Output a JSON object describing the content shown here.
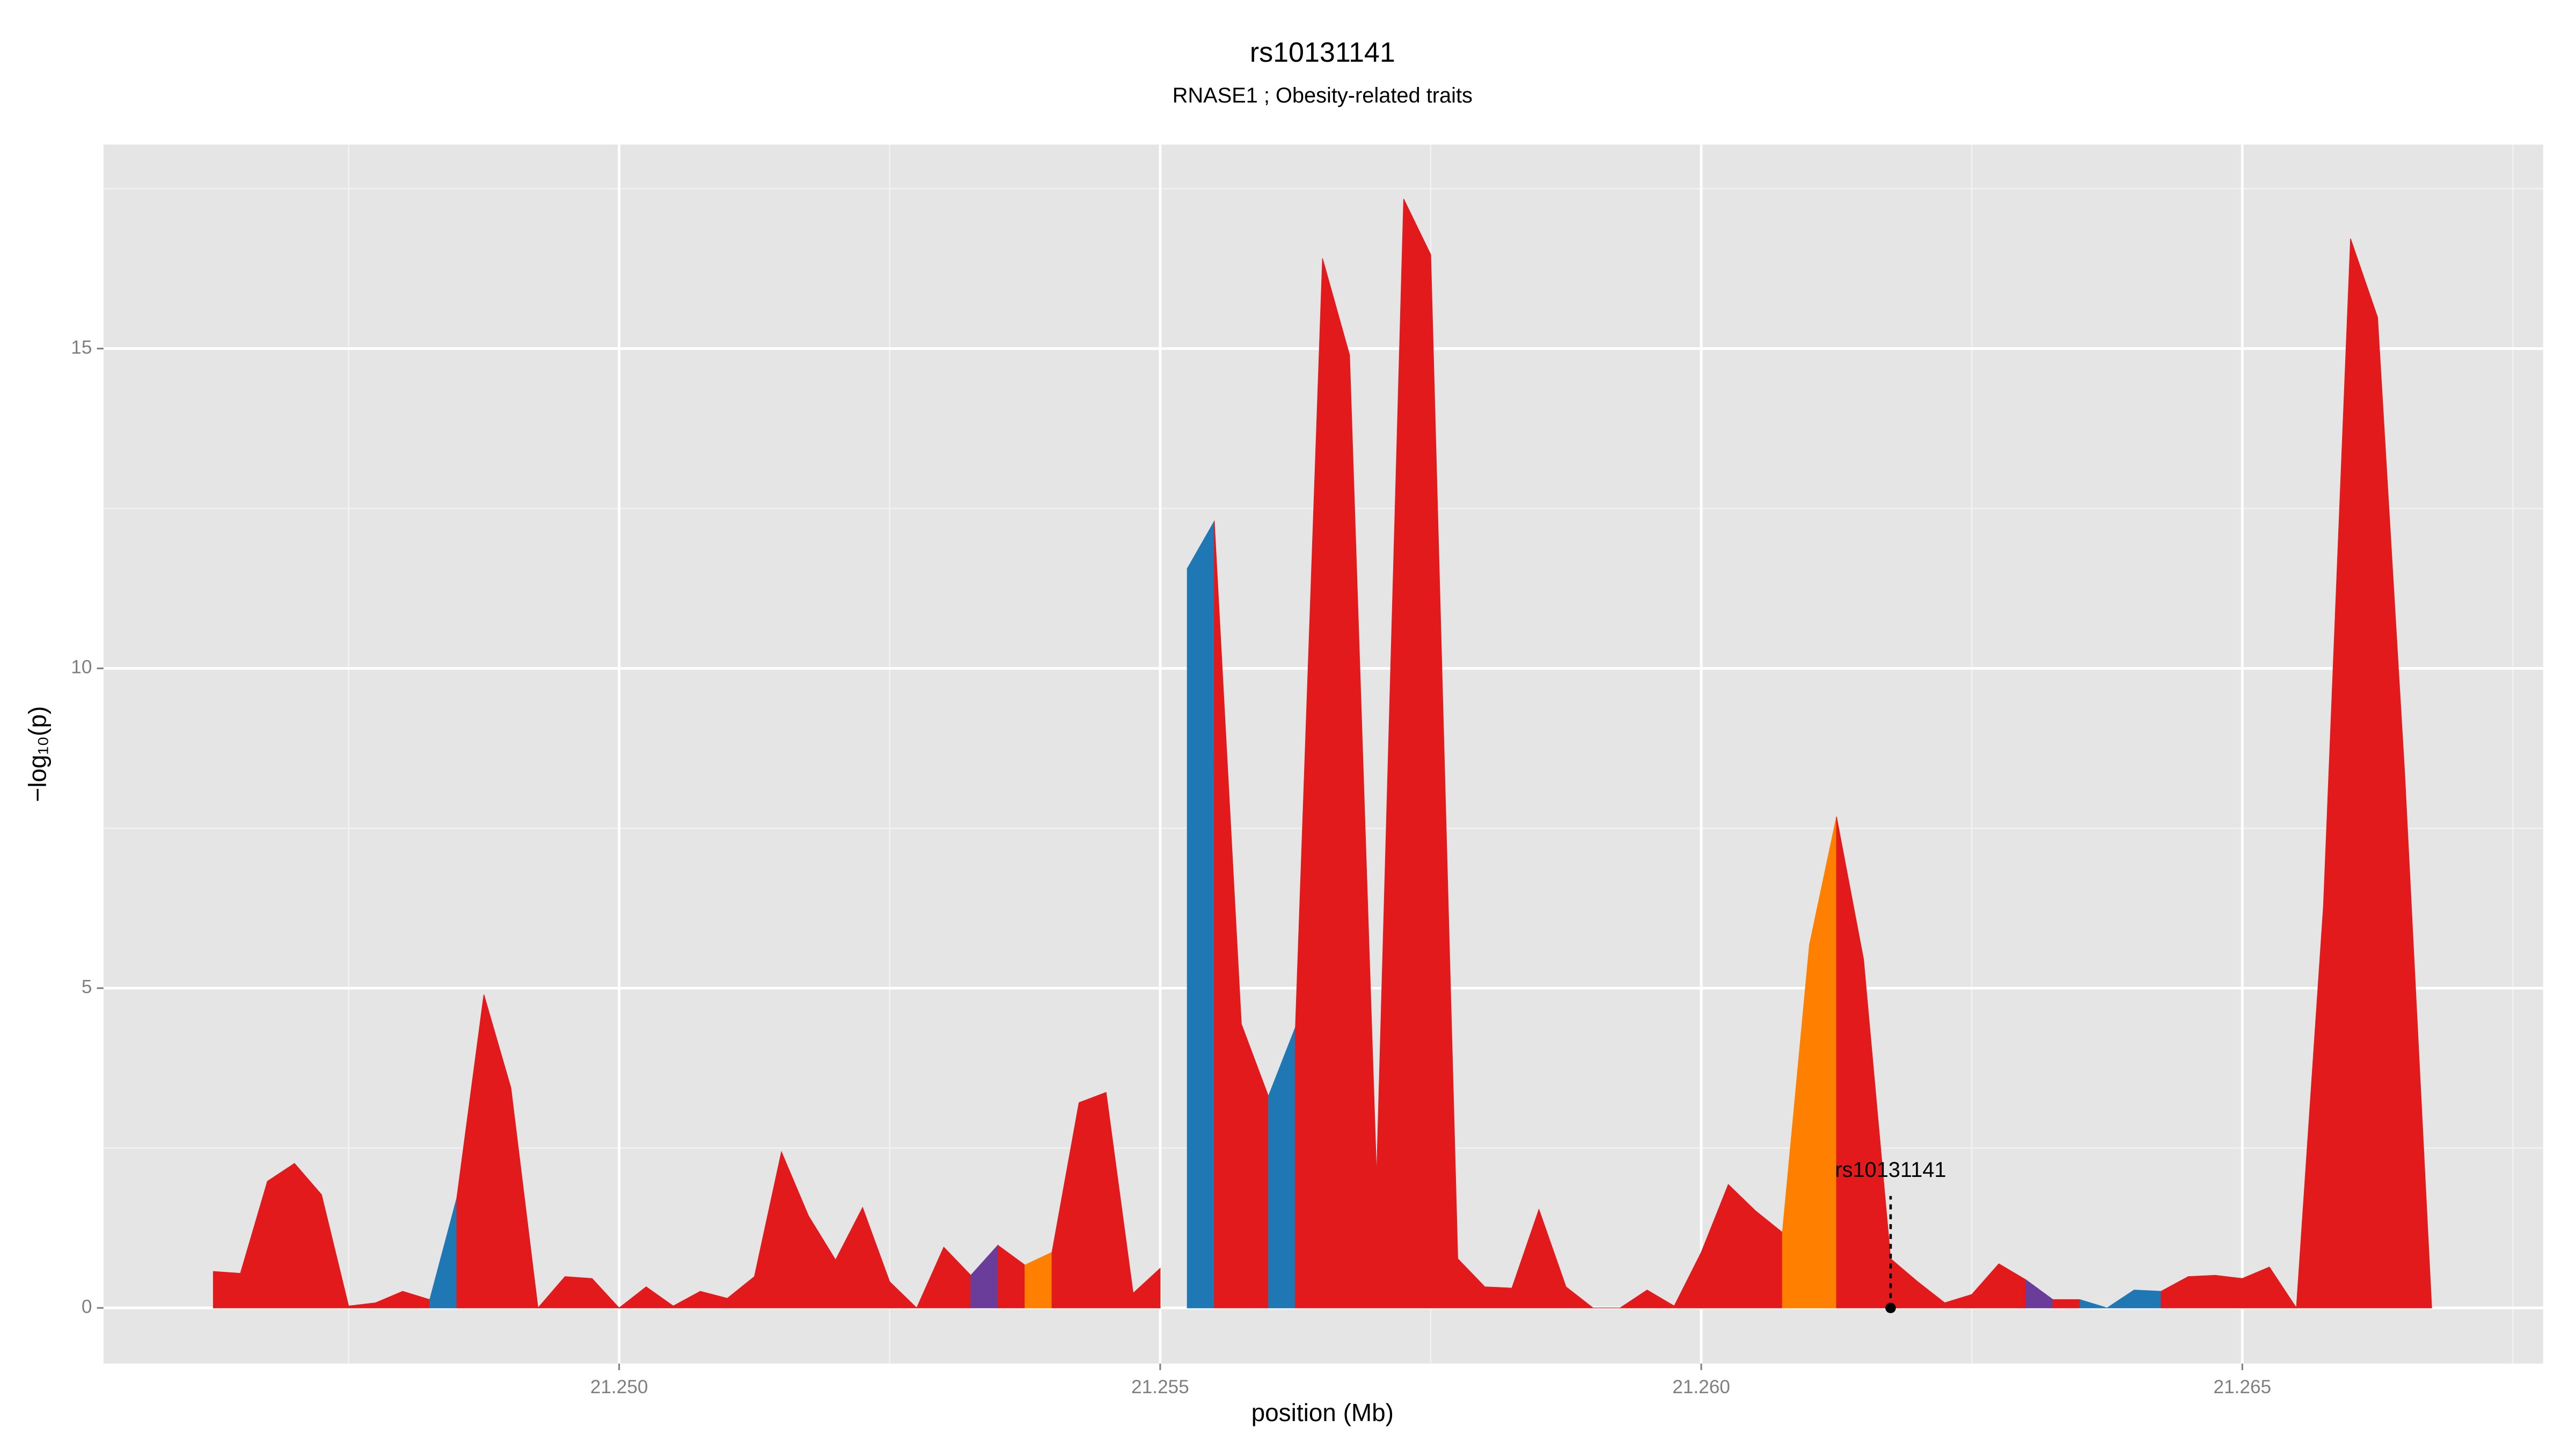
{
  "chart_data": {
    "type": "area",
    "title": "rs10131141",
    "subtitle": "RNASE1 ; Obesity-related traits",
    "xlabel": "position (Mb)",
    "ylabel": "−log₁₀(p)",
    "xlim": [
      21.245235,
      21.26778
    ],
    "ylim": [
      -0.87,
      18.19
    ],
    "xticks": [
      {
        "value": 21.25,
        "label": "21.250"
      },
      {
        "value": 21.255,
        "label": "21.255"
      },
      {
        "value": 21.26,
        "label": "21.260"
      },
      {
        "value": 21.265,
        "label": "21.265"
      }
    ],
    "yticks": [
      0,
      5,
      10,
      15
    ],
    "xminor": [
      21.2475,
      21.2525,
      21.2575,
      21.2625,
      21.2675
    ],
    "yminor": [
      2.5,
      7.5,
      12.5,
      17.5
    ],
    "grid": true,
    "series": [
      {
        "color": "#e31a1c",
        "x": [
          21.24625,
          21.2465,
          21.24675,
          21.247,
          21.24725,
          21.2475,
          21.24775,
          21.248,
          21.24825
        ],
        "values": [
          0.57,
          0.54,
          1.98,
          2.26,
          1.77,
          0.03,
          0.08,
          0.26,
          0.13
        ]
      },
      {
        "color": "#1f78b4",
        "x": [
          21.24825,
          21.2485
        ],
        "values": [
          0.13,
          1.72
        ]
      },
      {
        "color": "#e31a1c",
        "x": [
          21.2485,
          21.24875,
          21.249,
          21.24925,
          21.2495,
          21.24975,
          21.25,
          21.25025,
          21.2505,
          21.25075,
          21.251,
          21.25125,
          21.2515,
          21.25175,
          21.252,
          21.25225,
          21.2525,
          21.25275,
          21.253,
          21.25325
        ],
        "values": [
          1.72,
          4.9,
          3.44,
          0,
          0.49,
          0.46,
          0,
          0.33,
          0.03,
          0.26,
          0.15,
          0.49,
          2.44,
          1.44,
          0.75,
          1.57,
          0.41,
          0,
          0.95,
          0.51
        ]
      },
      {
        "color": "#6a3d9a",
        "x": [
          21.25325,
          21.2535
        ],
        "values": [
          0.51,
          0.98
        ]
      },
      {
        "color": "#e31a1c",
        "x": [
          21.2535,
          21.25375
        ],
        "values": [
          0.98,
          0.67
        ]
      },
      {
        "color": "#ff7f00",
        "x": [
          21.25375,
          21.254
        ],
        "values": [
          0.67,
          0.87
        ]
      },
      {
        "color": "#e31a1c",
        "x": [
          21.254,
          21.25425,
          21.2545,
          21.25475,
          21.255
        ],
        "values": [
          0.87,
          3.21,
          3.37,
          0.23,
          0.62
        ]
      },
      {
        "color": "#1f78b4",
        "x": [
          21.25525,
          21.2555
        ],
        "values": [
          11.56,
          12.3
        ]
      },
      {
        "color": "#e31a1c",
        "x": [
          21.2555,
          21.25575,
          21.256
        ],
        "values": [
          12.3,
          4.44,
          3.31
        ]
      },
      {
        "color": "#1f78b4",
        "x": [
          21.256,
          21.25625
        ],
        "values": [
          3.31,
          4.39
        ]
      },
      {
        "color": "#e31a1c",
        "x": [
          21.25625,
          21.2565,
          21.25675,
          21.257,
          21.25725,
          21.2575,
          21.25775,
          21.258,
          21.25825,
          21.2585,
          21.25875,
          21.259,
          21.25925,
          21.2595,
          21.25975,
          21.26,
          21.26025,
          21.2605,
          21.26075
        ],
        "values": [
          4.39,
          16.41,
          14.9,
          2.05,
          17.34,
          16.47,
          0.77,
          0.33,
          0.31,
          1.54,
          0.33,
          0,
          0,
          0.28,
          0.03,
          0.87,
          1.93,
          1.52,
          1.18
        ]
      },
      {
        "color": "#ff7f00",
        "x": [
          21.26075,
          21.261,
          21.26125
        ],
        "values": [
          1.18,
          5.68,
          7.68
        ]
      },
      {
        "color": "#e31a1c",
        "x": [
          21.26125,
          21.2615,
          21.26175,
          21.262,
          21.26225,
          21.2625,
          21.26275,
          21.263
        ],
        "values": [
          7.68,
          5.45,
          0.77,
          0.41,
          0.08,
          0.21,
          0.69,
          0.44
        ]
      },
      {
        "color": "#6a3d9a",
        "x": [
          21.263,
          21.26325
        ],
        "values": [
          0.44,
          0.13
        ]
      },
      {
        "color": "#e31a1c",
        "x": [
          21.26325,
          21.2635
        ],
        "values": [
          0.13,
          0.13
        ]
      },
      {
        "color": "#1f78b4",
        "x": [
          21.2635,
          21.26375,
          21.264,
          21.26425
        ],
        "values": [
          0.13,
          0,
          0.28,
          0.26
        ]
      },
      {
        "color": "#e31a1c",
        "x": [
          21.26425,
          21.2645,
          21.26475,
          21.265,
          21.26525,
          21.2655,
          21.26575,
          21.266,
          21.26625,
          21.2665,
          21.26675
        ],
        "values": [
          0.26,
          0.49,
          0.51,
          0.46,
          0.64,
          0,
          6.29,
          16.72,
          15.49,
          8.37,
          0
        ]
      }
    ],
    "annotations": [
      {
        "text": "rs10131141",
        "x": 21.26175,
        "y": 0
      }
    ]
  }
}
